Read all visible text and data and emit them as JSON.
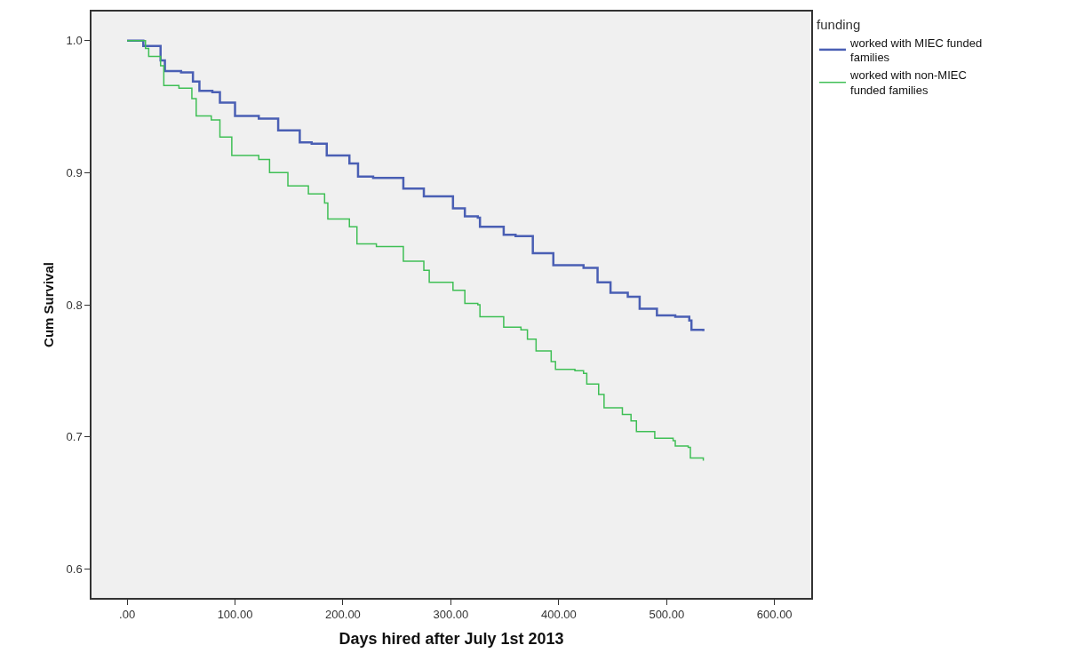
{
  "chart_data": {
    "type": "step",
    "xlabel": "Days hired after July 1st 2013",
    "ylabel": "Cum Survival",
    "legend_title": "funding",
    "xlim": [
      -33,
      634
    ],
    "ylim": [
      0.578,
      1.022
    ],
    "xticks": [
      {
        "value": 0,
        "label": ".00"
      },
      {
        "value": 100,
        "label": "100.00"
      },
      {
        "value": 200,
        "label": "200.00"
      },
      {
        "value": 300,
        "label": "300.00"
      },
      {
        "value": 400,
        "label": "400.00"
      },
      {
        "value": 500,
        "label": "500.00"
      },
      {
        "value": 600,
        "label": "600.00"
      }
    ],
    "yticks": [
      {
        "value": 0.6,
        "label": "0.6"
      },
      {
        "value": 0.7,
        "label": "0.7"
      },
      {
        "value": 0.8,
        "label": "0.8"
      },
      {
        "value": 0.9,
        "label": "0.9"
      },
      {
        "value": 1.0,
        "label": "1.0"
      }
    ],
    "grid": false,
    "legend": "top right",
    "marker": "none",
    "line_style": "solid",
    "series": [
      {
        "name": "worked with MIEC funded families",
        "color": "#4a5fb4",
        "x": [
          0,
          15,
          31,
          35,
          50,
          61,
          67,
          79,
          86,
          100,
          122,
          140,
          160,
          171,
          185,
          206,
          214,
          228,
          256,
          275,
          302,
          313,
          325,
          327,
          349,
          360,
          376,
          395,
          423,
          436,
          448,
          464,
          475,
          491,
          508,
          521,
          523,
          534
        ],
        "values": [
          1.0,
          0.996,
          0.985,
          0.977,
          0.976,
          0.969,
          0.962,
          0.961,
          0.953,
          0.943,
          0.941,
          0.932,
          0.923,
          0.922,
          0.913,
          0.907,
          0.897,
          0.896,
          0.888,
          0.882,
          0.873,
          0.867,
          0.866,
          0.859,
          0.853,
          0.852,
          0.839,
          0.83,
          0.828,
          0.817,
          0.809,
          0.806,
          0.797,
          0.792,
          0.791,
          0.788,
          0.781,
          0.78
        ]
      },
      {
        "name": "worked with non-MIEC funded families",
        "color": "#3fbf55",
        "x": [
          0,
          17,
          20,
          31,
          34,
          48,
          60,
          64,
          78,
          86,
          97,
          122,
          132,
          149,
          168,
          183,
          186,
          206,
          213,
          231,
          256,
          275,
          280,
          302,
          313,
          325,
          327,
          349,
          365,
          371,
          379,
          393,
          397,
          415,
          423,
          426,
          437,
          442,
          459,
          467,
          472,
          489,
          506,
          508,
          520,
          522,
          534
        ],
        "values": [
          1.0,
          0.994,
          0.988,
          0.981,
          0.966,
          0.964,
          0.956,
          0.943,
          0.94,
          0.927,
          0.913,
          0.91,
          0.9,
          0.89,
          0.884,
          0.877,
          0.865,
          0.859,
          0.846,
          0.844,
          0.833,
          0.826,
          0.817,
          0.811,
          0.801,
          0.8,
          0.791,
          0.783,
          0.781,
          0.774,
          0.765,
          0.757,
          0.751,
          0.75,
          0.748,
          0.74,
          0.732,
          0.722,
          0.717,
          0.712,
          0.704,
          0.699,
          0.697,
          0.693,
          0.692,
          0.684,
          0.682
        ]
      }
    ]
  }
}
